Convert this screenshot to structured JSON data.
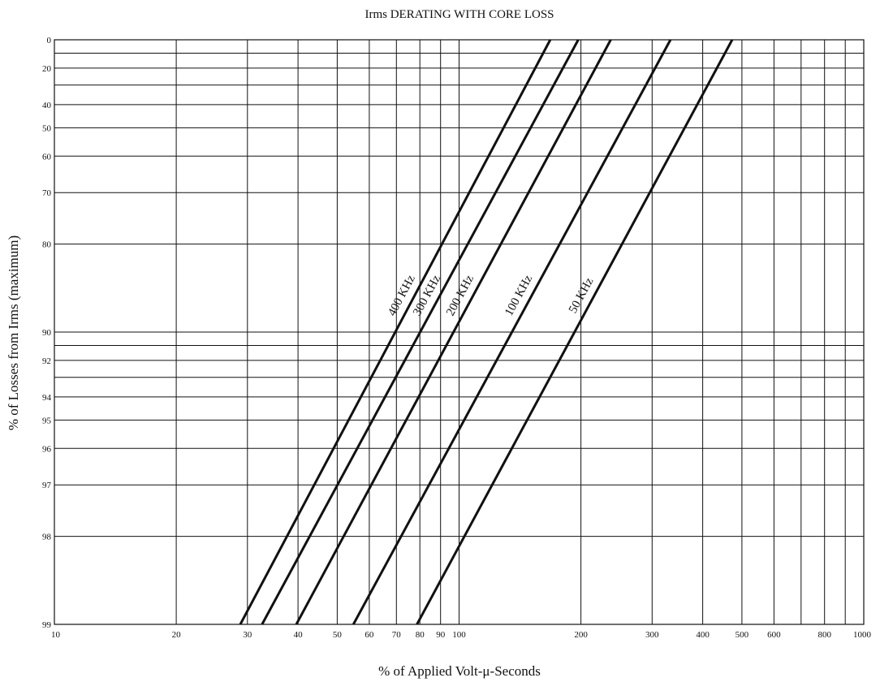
{
  "chart_data": {
    "type": "line",
    "title": "Irms DERATING WITH CORE LOSS",
    "xlabel": "% of Applied Volt-μ-Seconds",
    "ylabel": "% of Losses from Irms (maximum)",
    "x_scale": "log",
    "xlim": [
      10,
      1000
    ],
    "y_scale": "log of (100 - y)",
    "ylim": [
      0,
      99
    ],
    "grid": true,
    "x_ticks": [
      "10",
      "20",
      "30",
      "40",
      "50",
      "60",
      "70",
      "80",
      "90",
      "100",
      "200",
      "300",
      "400",
      "500",
      "600",
      "800",
      "1000"
    ],
    "x_grid_values": [
      20,
      30,
      40,
      50,
      60,
      70,
      80,
      90,
      100,
      200,
      300,
      400,
      500,
      600,
      700,
      800,
      900
    ],
    "y_ticks": [
      "0",
      "20",
      "40",
      "50",
      "60",
      "70",
      "80",
      "90",
      "92",
      "94",
      "95",
      "96",
      "97",
      "98",
      "99"
    ],
    "y_grid_values": [
      10,
      20,
      30,
      40,
      50,
      60,
      70,
      80,
      90,
      91,
      92,
      93,
      94,
      95,
      96,
      97,
      98
    ],
    "series": [
      {
        "name": "400 KHz",
        "x": [
          28.8,
          168
        ],
        "y": [
          99,
          0
        ]
      },
      {
        "name": "300 KHz",
        "x": [
          32.6,
          197
        ],
        "y": [
          99,
          0
        ]
      },
      {
        "name": "200 KHz",
        "x": [
          39.6,
          237
        ],
        "y": [
          99,
          0
        ]
      },
      {
        "name": "100 KHz",
        "x": [
          54.8,
          333
        ],
        "y": [
          99,
          0
        ]
      },
      {
        "name": "50 KHz",
        "x": [
          78.7,
          473
        ],
        "y": [
          99,
          0
        ]
      }
    ]
  }
}
